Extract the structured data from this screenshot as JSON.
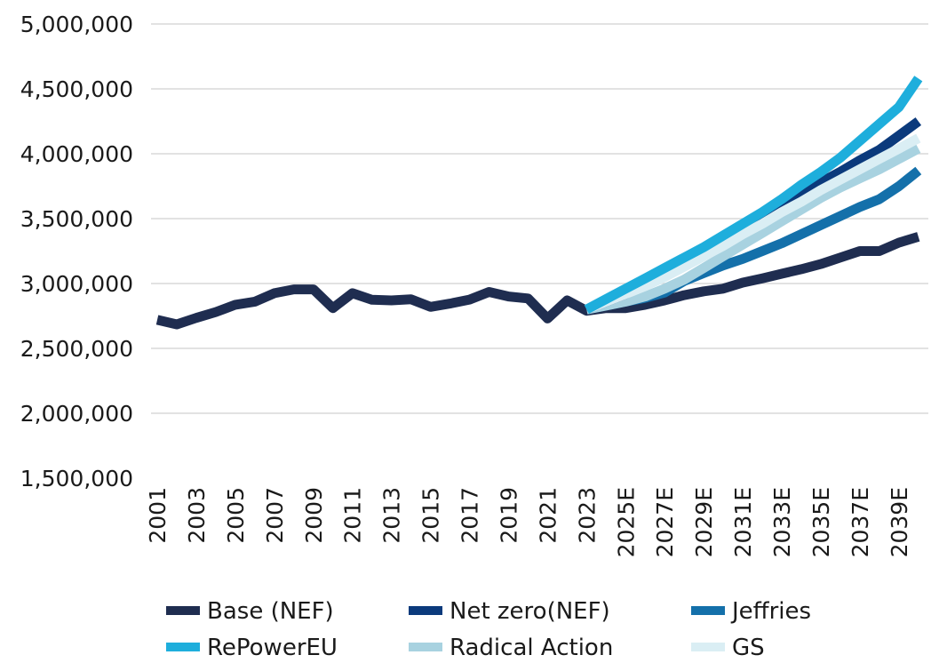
{
  "chart_data": {
    "type": "line",
    "title": "",
    "xlabel": "",
    "ylabel": "",
    "ylim": [
      1500000,
      5000000
    ],
    "yticks": [
      "1,500,000",
      "2,000,000",
      "2,500,000",
      "3,000,000",
      "3,500,000",
      "4,000,000",
      "4,500,000",
      "5,000,000"
    ],
    "ytick_values": [
      1500000,
      2000000,
      2500000,
      3000000,
      3500000,
      4000000,
      4500000,
      5000000
    ],
    "grid": true,
    "legend_position": "bottom",
    "x": [
      "2001",
      "2002",
      "2003",
      "2004",
      "2005",
      "2006",
      "2007",
      "2008",
      "2009",
      "2010",
      "2011",
      "2012",
      "2013",
      "2014",
      "2015",
      "2016",
      "2017",
      "2018",
      "2019",
      "2020",
      "2021",
      "2022",
      "2023",
      "2024E",
      "2025E",
      "2026E",
      "2027E",
      "2028E",
      "2029E",
      "2030E",
      "2031E",
      "2032E",
      "2033E",
      "2034E",
      "2035E",
      "2036E",
      "2037E",
      "2038E",
      "2039E",
      "2040E"
    ],
    "xtick_labels": [
      "2001",
      "2003",
      "2005",
      "2007",
      "2009",
      "2011",
      "2013",
      "2015",
      "2017",
      "2019",
      "2021",
      "2023",
      "2025E",
      "2027E",
      "2029E",
      "2031E",
      "2033E",
      "2035E",
      "2037E",
      "2039E"
    ],
    "series": [
      {
        "name": "Base (NEF)",
        "color": "#1f2d50",
        "values": [
          2720000,
          2685000,
          2735000,
          2780000,
          2836000,
          2860000,
          2925000,
          2955000,
          2955000,
          2810000,
          2925000,
          2875000,
          2870000,
          2878000,
          2820000,
          2845000,
          2876000,
          2935000,
          2900000,
          2885000,
          2730000,
          2870000,
          2790000,
          2810000,
          2810000,
          2836000,
          2870000,
          2910000,
          2940000,
          2960000,
          3007000,
          3040000,
          3075000,
          3110000,
          3150000,
          3200000,
          3250000,
          3250000,
          3315000,
          3360000
        ]
      },
      {
        "name": "Net zero(NEF)",
        "color": "#0b3a7c",
        "values": [
          null,
          null,
          null,
          null,
          null,
          null,
          null,
          null,
          null,
          null,
          null,
          null,
          null,
          null,
          null,
          null,
          null,
          null,
          null,
          null,
          null,
          null,
          2800000,
          2860000,
          2920000,
          2990000,
          3060000,
          3150000,
          3250000,
          3340000,
          3430000,
          3520000,
          3610000,
          3700000,
          3780000,
          3860000,
          3950000,
          4030000,
          4140000,
          4250000
        ]
      },
      {
        "name": "Jeffries",
        "color": "#1470aa",
        "values": [
          null,
          null,
          null,
          null,
          null,
          null,
          null,
          null,
          null,
          null,
          null,
          null,
          null,
          null,
          null,
          null,
          null,
          null,
          null,
          null,
          null,
          null,
          2800000,
          2830000,
          2860000,
          2890000,
          2930000,
          3020000,
          3080000,
          3140000,
          3190000,
          3250000,
          3310000,
          3380000,
          3450000,
          3520000,
          3590000,
          3650000,
          3750000,
          3870000
        ]
      },
      {
        "name": "RePowerEU",
        "color": "#1eaedc",
        "values": [
          null,
          null,
          null,
          null,
          null,
          null,
          null,
          null,
          null,
          null,
          null,
          null,
          null,
          null,
          null,
          null,
          null,
          null,
          null,
          null,
          null,
          null,
          2800000,
          2880000,
          2960000,
          3040000,
          3120000,
          3200000,
          3280000,
          3370000,
          3460000,
          3550000,
          3650000,
          3760000,
          3860000,
          3970000,
          4100000,
          4230000,
          4360000,
          4580000
        ]
      },
      {
        "name": "Radical Action",
        "color": "#a8d2e0",
        "values": [
          null,
          null,
          null,
          null,
          null,
          null,
          null,
          null,
          null,
          null,
          null,
          null,
          null,
          null,
          null,
          null,
          null,
          null,
          null,
          null,
          null,
          null,
          2800000,
          2830000,
          2860000,
          2900000,
          2960000,
          3030000,
          3120000,
          3210000,
          3300000,
          3390000,
          3480000,
          3570000,
          3660000,
          3740000,
          3810000,
          3880000,
          3960000,
          4040000
        ]
      },
      {
        "name": "GS",
        "color": "#daeef4",
        "values": [
          null,
          null,
          null,
          null,
          null,
          null,
          null,
          null,
          null,
          null,
          null,
          null,
          null,
          null,
          null,
          null,
          null,
          null,
          null,
          null,
          null,
          null,
          2800000,
          2860000,
          2920000,
          2980000,
          3050000,
          3130000,
          3210000,
          3290000,
          3380000,
          3460000,
          3550000,
          3630000,
          3720000,
          3800000,
          3880000,
          3960000,
          4040000,
          4120000
        ]
      }
    ]
  }
}
